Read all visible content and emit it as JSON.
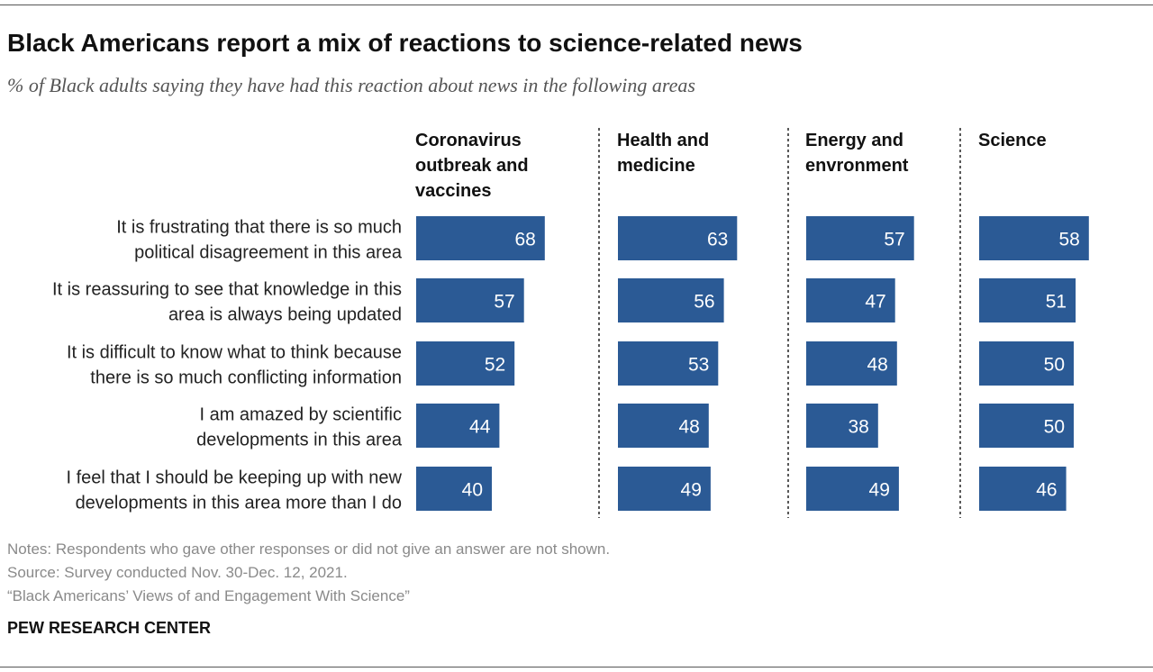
{
  "header": {
    "title": "Black Americans report a mix of reactions to science-related news",
    "subtitle": "% of Black adults saying they have had this reaction about news in the following areas"
  },
  "chart_data": {
    "type": "bar",
    "orientation": "horizontal",
    "title": "Black Americans report a mix of reactions to science-related news",
    "subtitle": "% of Black adults saying they have had this reaction about news in the following areas",
    "categories": [
      [
        "It is frustrating that there is so much",
        "political disagreement in this area"
      ],
      [
        "It is reassuring to see that knowledge in this",
        "area is always being updated"
      ],
      [
        "It is difficult to know what to think because",
        "there is so much conflicting information"
      ],
      [
        "I am amazed by scientific",
        "developments in this area"
      ],
      [
        "I feel that I should be keeping up with new",
        "developments in this area more than I do"
      ]
    ],
    "series": [
      {
        "name": [
          "Coronavirus",
          "outbreak and",
          "vaccines"
        ],
        "values": [
          68,
          57,
          52,
          44,
          40
        ]
      },
      {
        "name": [
          "Health and",
          "medicine"
        ],
        "values": [
          63,
          56,
          53,
          48,
          49
        ]
      },
      {
        "name": [
          "Energy and",
          "envronment"
        ],
        "values": [
          57,
          47,
          48,
          38,
          49
        ]
      },
      {
        "name": [
          "Science"
        ],
        "values": [
          58,
          51,
          50,
          50,
          46
        ]
      }
    ],
    "data_labels": true,
    "grid": false,
    "bar_color": "#2b5a95"
  },
  "footer": {
    "notes": "Notes: Respondents who gave other responses or did not give an answer are not shown.",
    "source": "Source: Survey conducted Nov. 30-Dec. 12, 2021.",
    "report": "“Black Americans’ Views of and Engagement With Science”",
    "brand": "PEW RESEARCH CENTER"
  }
}
